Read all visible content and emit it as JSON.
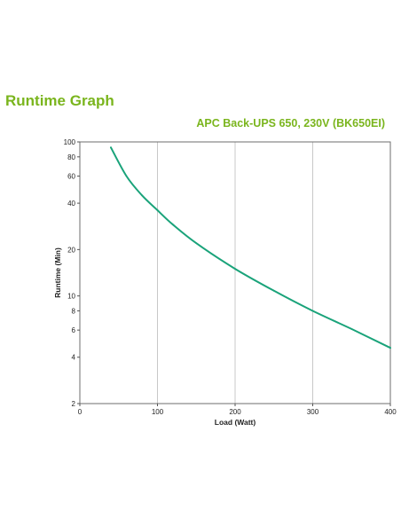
{
  "page_title": "Runtime Graph",
  "chart_data": {
    "type": "line",
    "title": "APC Back-UPS 650, 230V (BK650EI)",
    "xlabel": "Load (Watt)",
    "ylabel": "Runtime (Min)",
    "xlim": [
      0,
      400
    ],
    "ylim": [
      2,
      100
    ],
    "yscale": "log",
    "grid": "vertical",
    "xticks": [
      0,
      100,
      200,
      300,
      400
    ],
    "yticks": [
      2,
      4,
      6,
      8,
      10,
      20,
      40,
      60,
      80,
      100
    ],
    "colors": {
      "line": "#1aa37a",
      "title": "#7ab51d",
      "grid": "#c8c8c8"
    },
    "series": [
      {
        "x": [
          40,
          60,
          80,
          100,
          120,
          150,
          200,
          250,
          300,
          350,
          400
        ],
        "y": [
          92,
          60,
          45,
          36,
          29,
          22,
          15,
          10.8,
          8,
          6.1,
          4.6
        ]
      }
    ]
  }
}
